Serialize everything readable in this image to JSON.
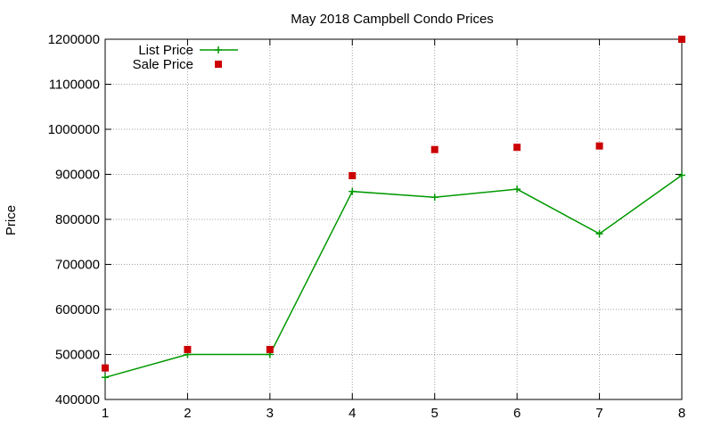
{
  "chart_data": {
    "type": "line",
    "title": "May 2018 Campbell Condo Prices",
    "xlabel": "",
    "ylabel": "Price",
    "x": [
      1,
      2,
      3,
      4,
      5,
      6,
      7,
      8
    ],
    "xlim": [
      1,
      8
    ],
    "ylim": [
      400000,
      1200000
    ],
    "x_ticks": [
      1,
      2,
      3,
      4,
      5,
      6,
      7,
      8
    ],
    "y_ticks": [
      400000,
      500000,
      600000,
      700000,
      800000,
      900000,
      1000000,
      1100000,
      1200000
    ],
    "grid": true,
    "legend_position": "top-left",
    "series": [
      {
        "name": "List Price",
        "style": "linespoints",
        "marker": "plus",
        "color": "#009900",
        "values": [
          449000,
          500000,
          500000,
          862000,
          849000,
          867000,
          768000,
          898000
        ]
      },
      {
        "name": "Sale Price",
        "style": "points",
        "marker": "square",
        "color": "#cc0000",
        "values": [
          470000,
          511000,
          511000,
          897000,
          955000,
          960000,
          963000,
          1200000
        ]
      }
    ]
  }
}
